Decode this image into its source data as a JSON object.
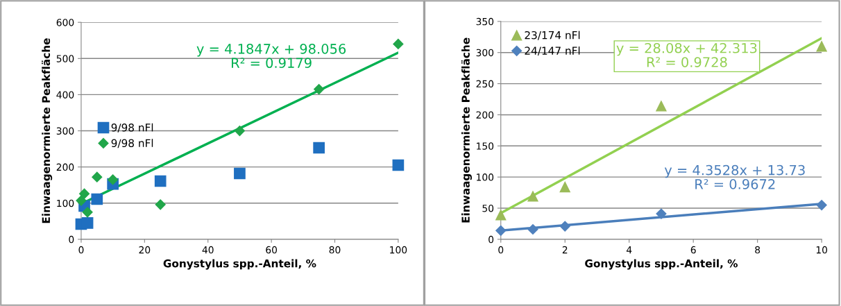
{
  "chart_data": [
    {
      "type": "scatter",
      "xlabel": "Gonystylus spp.-Anteil, %",
      "ylabel": "Einwaagenormierte Peakfläche",
      "xlim": [
        0,
        100
      ],
      "xticks": [
        0,
        20,
        40,
        60,
        80,
        100
      ],
      "ylim": [
        0,
        600
      ],
      "yticks": [
        0,
        100,
        200,
        300,
        400,
        500,
        600
      ],
      "grid": "y",
      "legend": "left",
      "series": [
        {
          "name": "9/98 nFl",
          "color": "#1f6fc0",
          "marker": "square",
          "x": [
            0,
            1,
            2,
            5,
            10,
            25,
            50,
            75,
            100
          ],
          "values": [
            42,
            92,
            45,
            111,
            153,
            161,
            182,
            253,
            205
          ]
        },
        {
          "name": "9/98 nFl",
          "color": "#21a64a",
          "marker": "diamond",
          "x": [
            0,
            1,
            2,
            5,
            10,
            25,
            50,
            75,
            100
          ],
          "values": [
            107,
            126,
            75,
            172,
            165,
            96,
            300,
            415,
            540
          ]
        },
        {
          "type": "line",
          "color": "#00b050",
          "marker": "none",
          "x": [
            0,
            100
          ],
          "values": [
            98,
            516
          ]
        }
      ],
      "annotations": [
        "y = 4.1847x + 98.056\nR² = 0.9179"
      ]
    },
    {
      "type": "scatter",
      "xlabel": "Gonystylus spp.-Anteil, %",
      "ylabel": "Einwaagenormierte Peakfläche",
      "xlim": [
        0,
        10
      ],
      "xticks": [
        0,
        2,
        4,
        6,
        8,
        10
      ],
      "ylim": [
        0,
        350
      ],
      "yticks": [
        0,
        50,
        100,
        150,
        200,
        250,
        300,
        350
      ],
      "grid": "y",
      "legend": "upper left",
      "series": [
        {
          "name": "23/174 nFl",
          "color": "#9bbb59",
          "marker": "triangle",
          "x": [
            0,
            1,
            2,
            5,
            10
          ],
          "values": [
            39,
            69,
            84,
            214,
            310
          ]
        },
        {
          "name": "24/147 nFl",
          "color": "#4f81bd",
          "marker": "diamond",
          "x": [
            0,
            1,
            2,
            5,
            10
          ],
          "values": [
            14,
            16,
            21,
            41,
            55
          ]
        },
        {
          "type": "line",
          "color": "#92d050",
          "marker": "none",
          "x": [
            0,
            10
          ],
          "values": [
            42,
            323
          ]
        },
        {
          "type": "line",
          "color": "#4a7ebb",
          "marker": "none",
          "x": [
            0,
            10
          ],
          "values": [
            14,
            57
          ]
        }
      ],
      "annotations": [
        "y = 28.08x + 42.313\nR² = 0.9728",
        "y = 4.3528x + 13.73\nR² = 0.9672"
      ]
    }
  ]
}
